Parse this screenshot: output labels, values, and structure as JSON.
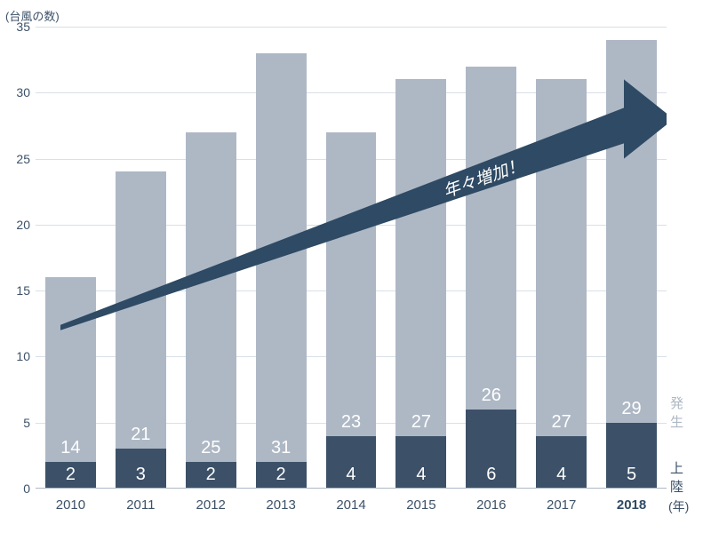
{
  "chart": {
    "type": "bar-stacked",
    "y_title": "(台風の数)",
    "x_unit": "(年)",
    "ymax": 35,
    "yticks": [
      0,
      5,
      10,
      15,
      20,
      25,
      30,
      35
    ],
    "colors": {
      "upper_bar": "#aeb8c5",
      "lower_bar": "#3c5168",
      "grid": "#d8e0e8",
      "text": "#3c5168",
      "arrow": "#2e4a64",
      "highlight_year": "#2e4a64"
    },
    "legend": {
      "upper": "発生",
      "lower": "上陸"
    },
    "arrow_label": "年々増加！",
    "data": [
      {
        "year": "2010",
        "upper": 14,
        "lower": 2,
        "highlight": false
      },
      {
        "year": "2011",
        "upper": 21,
        "lower": 3,
        "highlight": false
      },
      {
        "year": "2012",
        "upper": 25,
        "lower": 2,
        "highlight": false
      },
      {
        "year": "2013",
        "upper": 31,
        "lower": 2,
        "highlight": false
      },
      {
        "year": "2014",
        "upper": 23,
        "lower": 4,
        "highlight": false
      },
      {
        "year": "2015",
        "upper": 27,
        "lower": 4,
        "highlight": false
      },
      {
        "year": "2016",
        "upper": 26,
        "lower": 6,
        "highlight": false
      },
      {
        "year": "2017",
        "upper": 27,
        "lower": 4,
        "highlight": false
      },
      {
        "year": "2018",
        "upper": 29,
        "lower": 5,
        "highlight": true
      }
    ]
  }
}
